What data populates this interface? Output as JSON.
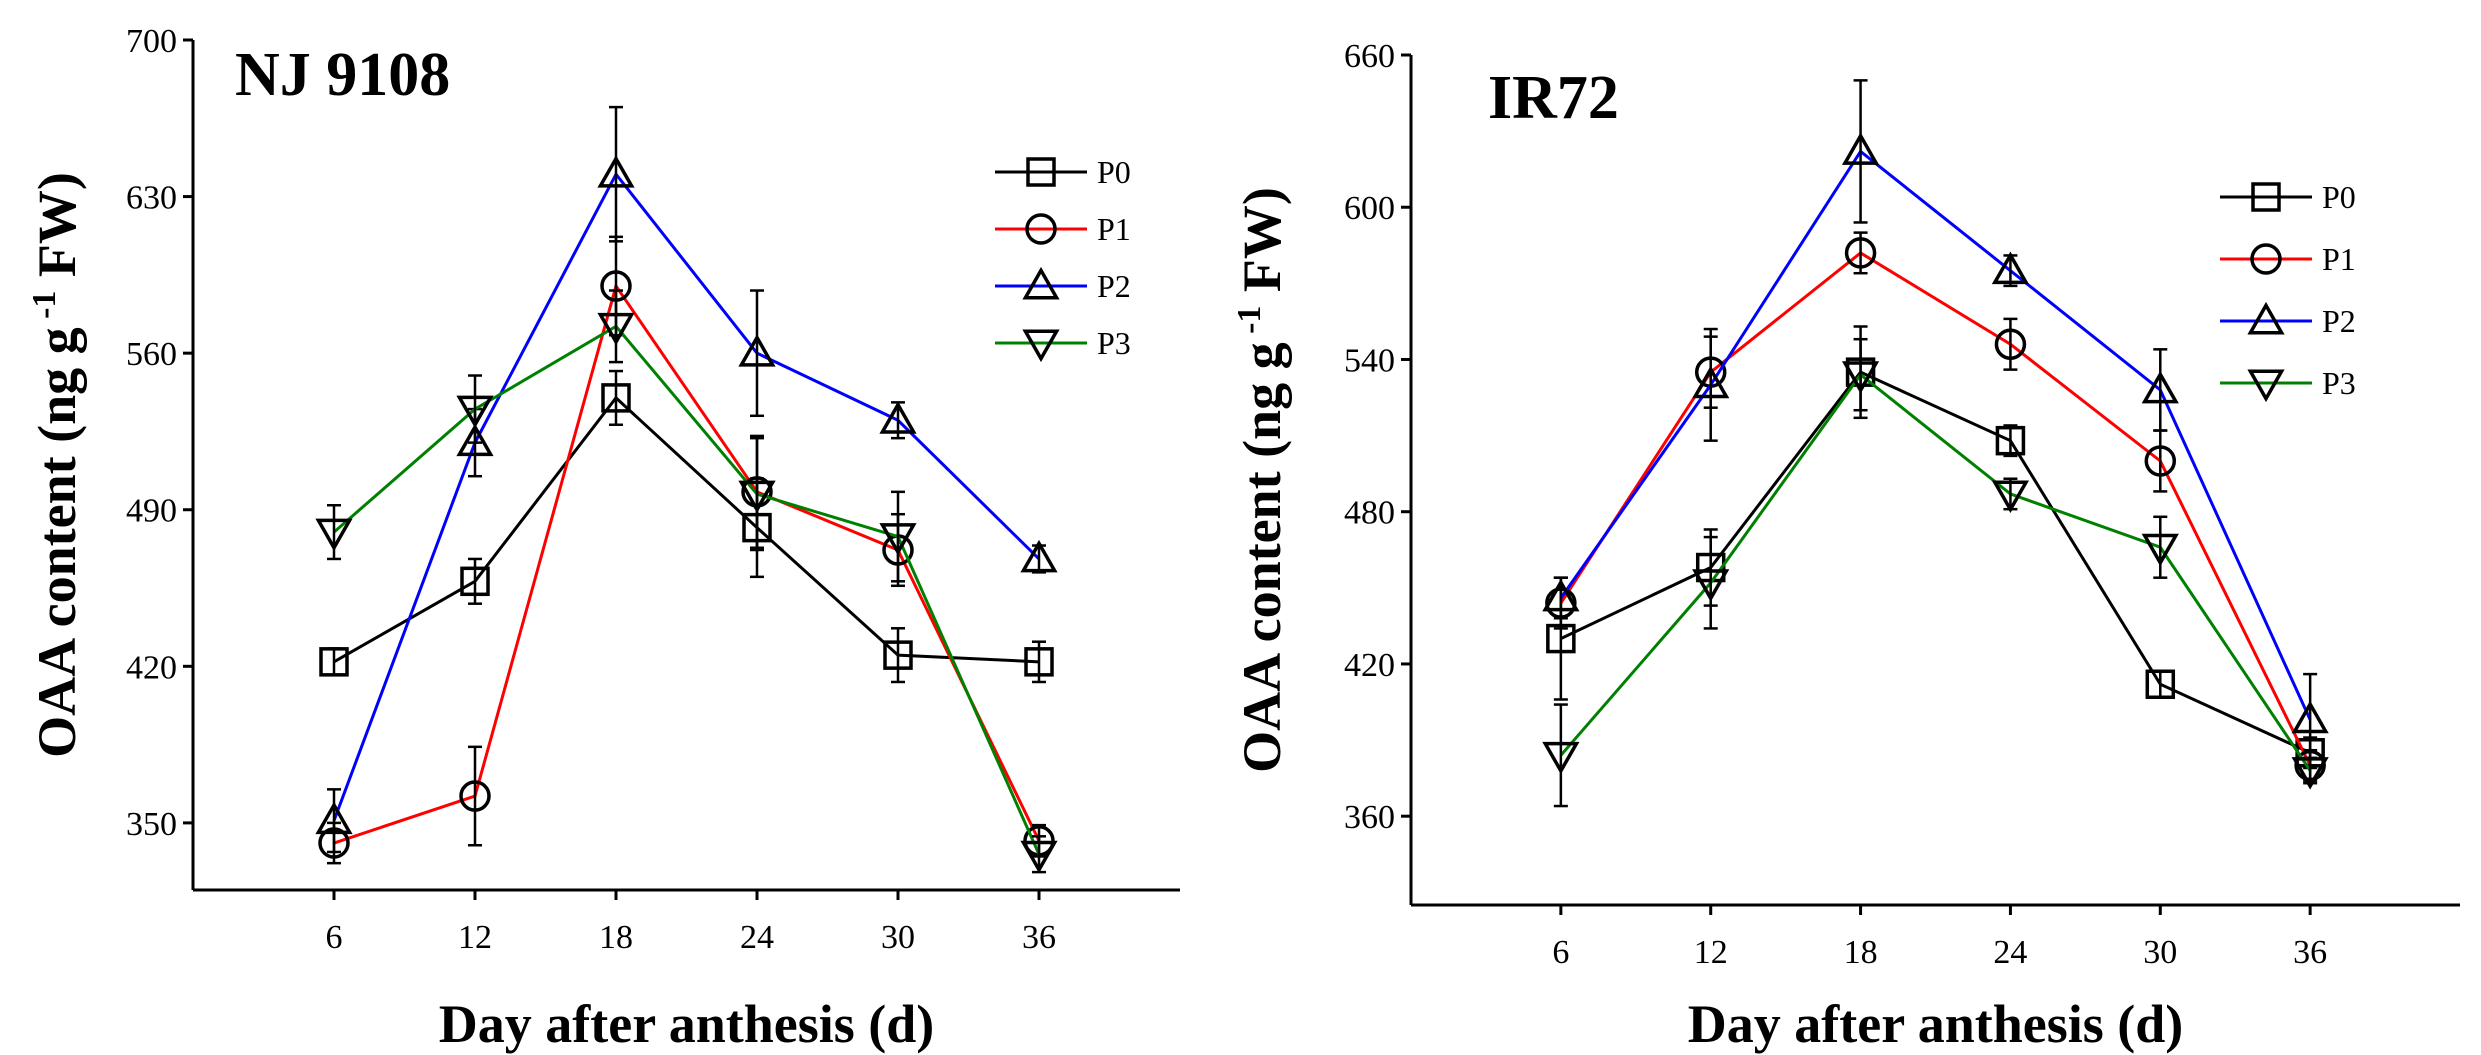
{
  "chart_data": [
    {
      "type": "line",
      "title": "NJ 9108",
      "xlabel": "Day after anthesis (d)",
      "ylabel_main": "OAA content  (ng g",
      "ylabel_sup": "-1",
      "ylabel_end": " FW)",
      "x": [
        6,
        12,
        18,
        24,
        30,
        36
      ],
      "xticks": [
        "6",
        "12",
        "18",
        "24",
        "30",
        "36"
      ],
      "xlim": [
        0,
        42
      ],
      "ylim": [
        320,
        700
      ],
      "yticks": [
        350,
        420,
        490,
        560,
        630,
        700
      ],
      "legend_position": "top-right",
      "series": [
        {
          "name": "P0",
          "color": "#000000",
          "marker": "square",
          "values": [
            422,
            458,
            540,
            482,
            425,
            422
          ],
          "errors": [
            6,
            10,
            12,
            22,
            12,
            9
          ]
        },
        {
          "name": "P1",
          "color": "#ff0000",
          "marker": "circle",
          "values": [
            341,
            362,
            590,
            498,
            472,
            342
          ],
          "errors": [
            9,
            22,
            22,
            25,
            16,
            7
          ]
        },
        {
          "name": "P2",
          "color": "#0000ff",
          "marker": "triangle-up",
          "values": [
            351,
            520,
            640,
            560,
            530,
            468
          ],
          "errors": [
            14,
            15,
            30,
            28,
            8,
            6
          ]
        },
        {
          "name": "P3",
          "color": "#008000",
          "marker": "triangle-down",
          "values": [
            480,
            535,
            572,
            497,
            478,
            336
          ],
          "errors": [
            12,
            15,
            16,
            25,
            20,
            8
          ]
        }
      ]
    },
    {
      "type": "line",
      "title": "IR72",
      "xlabel": "Day after anthesis (d)",
      "ylabel_main": "OAA content  (ng g",
      "ylabel_sup": "-1",
      "ylabel_end": " FW)",
      "x": [
        6,
        12,
        18,
        24,
        30,
        36
      ],
      "xticks": [
        "6",
        "12",
        "18",
        "24",
        "30",
        "36"
      ],
      "xlim": [
        0,
        42
      ],
      "ylim": [
        325,
        660
      ],
      "yticks": [
        360,
        420,
        480,
        540,
        600,
        660
      ],
      "legend_position": "top-right",
      "series": [
        {
          "name": "P0",
          "color": "#000000",
          "marker": "square",
          "values": [
            430,
            458,
            535,
            508,
            412,
            385
          ],
          "errors": [
            24,
            15,
            18,
            6,
            5,
            6
          ]
        },
        {
          "name": "P1",
          "color": "#ff0000",
          "marker": "circle",
          "values": [
            444,
            535,
            582,
            546,
            500,
            380
          ],
          "errors": [
            10,
            14,
            8,
            10,
            12,
            6
          ]
        },
        {
          "name": "P2",
          "color": "#0000ff",
          "marker": "triangle-up",
          "values": [
            446,
            530,
            622,
            575,
            528,
            398
          ],
          "errors": [
            8,
            22,
            28,
            6,
            16,
            18
          ]
        },
        {
          "name": "P3",
          "color": "#008000",
          "marker": "triangle-down",
          "values": [
            384,
            452,
            534,
            487,
            466,
            378
          ],
          "errors": [
            20,
            18,
            14,
            6,
            12,
            5
          ]
        }
      ]
    }
  ]
}
